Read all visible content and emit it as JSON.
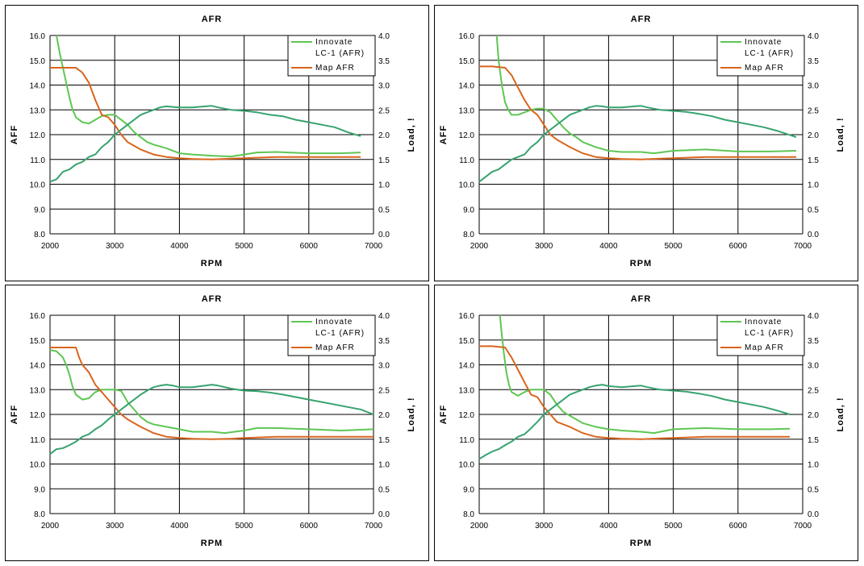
{
  "chart_data": [
    {
      "type": "line",
      "title": "AFR",
      "xlabel": "RPM",
      "ylabel": "AFF",
      "y2label": "Load, !",
      "xlim": [
        2000,
        7000
      ],
      "ylim": [
        8.0,
        16.0
      ],
      "y2lim": [
        0.0,
        4.0
      ],
      "x_ticks": [
        "2000",
        "3000",
        "4000",
        "5000",
        "6000",
        "7000"
      ],
      "y_ticks": [
        "8.0",
        "9.0",
        "10.0",
        "11.0",
        "12.0",
        "13.0",
        "14.0",
        "15.0",
        "16.0"
      ],
      "y2_ticks": [
        "0.0",
        "0.5",
        "1.0",
        "1.5",
        "2.0",
        "2.5",
        "3.0",
        "3.5",
        "4.0"
      ],
      "legend": [
        "Innovate LC-1 (AFR)",
        "Map AFR"
      ],
      "series": [
        {
          "name": "Innovate LC-1 (AFR)",
          "color": "#5ec653",
          "axis": "left",
          "x": [
            2100,
            2150,
            2200,
            2250,
            2300,
            2350,
            2400,
            2500,
            2600,
            2700,
            2800,
            2900,
            3000,
            3100,
            3200,
            3300,
            3400,
            3500,
            3600,
            3800,
            4000,
            4200,
            4500,
            4800,
            5000,
            5200,
            5500,
            6000,
            6500,
            6800
          ],
          "y": [
            16.0,
            15.3,
            14.7,
            14.1,
            13.5,
            13.0,
            12.7,
            12.5,
            12.45,
            12.6,
            12.75,
            12.8,
            12.8,
            12.6,
            12.4,
            12.1,
            11.9,
            11.7,
            11.6,
            11.45,
            11.25,
            11.2,
            11.15,
            11.12,
            11.2,
            11.28,
            11.3,
            11.25,
            11.25,
            11.28
          ]
        },
        {
          "name": "Map AFR",
          "color": "#d9651c",
          "axis": "left",
          "x": [
            2000,
            2200,
            2400,
            2500,
            2600,
            2700,
            2800,
            2900,
            3000,
            3100,
            3200,
            3400,
            3600,
            3800,
            4000,
            4200,
            4500,
            4800,
            5000,
            5500,
            6000,
            6500,
            6800
          ],
          "y": [
            14.7,
            14.7,
            14.7,
            14.5,
            14.1,
            13.4,
            12.8,
            12.7,
            12.4,
            12.0,
            11.7,
            11.4,
            11.2,
            11.1,
            11.05,
            11.02,
            11.0,
            11.03,
            11.05,
            11.1,
            11.1,
            11.1,
            11.1
          ]
        },
        {
          "name": "Load",
          "color": "#37a36f",
          "axis": "right",
          "x": [
            2000,
            2100,
            2200,
            2300,
            2400,
            2500,
            2600,
            2700,
            2800,
            2900,
            3000,
            3100,
            3200,
            3300,
            3400,
            3500,
            3600,
            3700,
            3800,
            3900,
            4000,
            4200,
            4400,
            4500,
            4600,
            4800,
            5000,
            5200,
            5400,
            5600,
            5800,
            6000,
            6200,
            6400,
            6600,
            6800
          ],
          "y": [
            1.05,
            1.1,
            1.25,
            1.3,
            1.4,
            1.45,
            1.55,
            1.6,
            1.75,
            1.85,
            2.0,
            2.1,
            2.2,
            2.3,
            2.4,
            2.45,
            2.5,
            2.55,
            2.57,
            2.56,
            2.55,
            2.55,
            2.57,
            2.58,
            2.55,
            2.5,
            2.48,
            2.45,
            2.4,
            2.37,
            2.3,
            2.25,
            2.2,
            2.15,
            2.05,
            1.97
          ]
        }
      ]
    },
    {
      "type": "line",
      "title": "AFR",
      "xlabel": "RPM",
      "ylabel": "AFF",
      "y2label": "Load, !",
      "xlim": [
        2000,
        7000
      ],
      "ylim": [
        8.0,
        16.0
      ],
      "y2lim": [
        0.0,
        4.0
      ],
      "x_ticks": [
        "2000",
        "3000",
        "4000",
        "5000",
        "6000",
        "7000"
      ],
      "y_ticks": [
        "8.0",
        "9.0",
        "10.0",
        "11.0",
        "12.0",
        "13.0",
        "14.0",
        "15.0",
        "16.0"
      ],
      "y2_ticks": [
        "0.0",
        "0.5",
        "1.0",
        "1.5",
        "2.0",
        "2.5",
        "3.0",
        "3.5",
        "4.0"
      ],
      "legend": [
        "Innovate LC-1 (AFR)",
        "Map AFR"
      ],
      "series": [
        {
          "name": "Innovate LC-1 (AFR)",
          "color": "#5ec653",
          "axis": "left",
          "x": [
            2270,
            2300,
            2350,
            2400,
            2450,
            2500,
            2600,
            2700,
            2800,
            2900,
            3000,
            3100,
            3200,
            3300,
            3400,
            3500,
            3600,
            3800,
            4000,
            4200,
            4500,
            4700,
            5000,
            5500,
            6000,
            6500,
            6900
          ],
          "y": [
            16.0,
            15.0,
            14.0,
            13.3,
            13.0,
            12.8,
            12.8,
            12.9,
            13.0,
            13.05,
            13.05,
            12.9,
            12.6,
            12.3,
            12.05,
            11.9,
            11.7,
            11.5,
            11.35,
            11.3,
            11.3,
            11.25,
            11.35,
            11.4,
            11.32,
            11.32,
            11.35
          ]
        },
        {
          "name": "Map AFR",
          "color": "#d9651c",
          "axis": "left",
          "x": [
            2000,
            2200,
            2400,
            2500,
            2600,
            2700,
            2800,
            2900,
            3000,
            3100,
            3200,
            3400,
            3600,
            3800,
            4000,
            4200,
            4500,
            4800,
            5000,
            5500,
            6000,
            6500,
            6900
          ],
          "y": [
            14.75,
            14.75,
            14.7,
            14.4,
            13.9,
            13.4,
            13.0,
            12.8,
            12.4,
            12.0,
            11.8,
            11.5,
            11.25,
            11.1,
            11.05,
            11.02,
            11.0,
            11.03,
            11.05,
            11.1,
            11.1,
            11.1,
            11.1
          ]
        },
        {
          "name": "Load",
          "color": "#37a36f",
          "axis": "right",
          "x": [
            2000,
            2100,
            2200,
            2300,
            2400,
            2500,
            2600,
            2700,
            2800,
            2900,
            3000,
            3100,
            3200,
            3300,
            3400,
            3500,
            3600,
            3700,
            3800,
            3900,
            4000,
            4200,
            4400,
            4500,
            4600,
            4800,
            5000,
            5200,
            5400,
            5600,
            5800,
            6000,
            6200,
            6400,
            6600,
            6900
          ],
          "y": [
            1.05,
            1.15,
            1.25,
            1.3,
            1.4,
            1.5,
            1.55,
            1.6,
            1.75,
            1.85,
            2.0,
            2.1,
            2.2,
            2.3,
            2.4,
            2.45,
            2.5,
            2.55,
            2.58,
            2.57,
            2.55,
            2.55,
            2.57,
            2.58,
            2.55,
            2.5,
            2.48,
            2.46,
            2.42,
            2.37,
            2.3,
            2.25,
            2.2,
            2.15,
            2.08,
            1.95
          ]
        }
      ]
    },
    {
      "type": "line",
      "title": "AFR",
      "xlabel": "RPM",
      "ylabel": "AFF",
      "y2label": "Load, !",
      "xlim": [
        2000,
        7000
      ],
      "ylim": [
        8.0,
        16.0
      ],
      "y2lim": [
        0.0,
        4.0
      ],
      "x_ticks": [
        "2000",
        "3000",
        "4000",
        "5000",
        "6000",
        "7000"
      ],
      "y_ticks": [
        "8.0",
        "9.0",
        "10.0",
        "11.0",
        "12.0",
        "13.0",
        "14.0",
        "15.0",
        "16.0"
      ],
      "y2_ticks": [
        "0.0",
        "0.5",
        "1.0",
        "1.5",
        "2.0",
        "2.5",
        "3.0",
        "3.5",
        "4.0"
      ],
      "legend": [
        "Innovate LC-1 (AFR)",
        "Map AFR"
      ],
      "series": [
        {
          "name": "Innovate LC-1 (AFR)",
          "color": "#5ec653",
          "axis": "left",
          "x": [
            2000,
            2100,
            2200,
            2250,
            2300,
            2350,
            2400,
            2500,
            2600,
            2700,
            2800,
            2900,
            3000,
            3100,
            3200,
            3300,
            3400,
            3500,
            3600,
            3800,
            4000,
            4200,
            4500,
            4700,
            5000,
            5200,
            5500,
            6000,
            6500,
            7000
          ],
          "y": [
            14.6,
            14.55,
            14.3,
            14.0,
            13.6,
            13.1,
            12.8,
            12.6,
            12.65,
            12.9,
            13.0,
            13.0,
            13.0,
            12.95,
            12.5,
            12.2,
            11.9,
            11.7,
            11.6,
            11.5,
            11.4,
            11.3,
            11.3,
            11.25,
            11.35,
            11.45,
            11.45,
            11.4,
            11.35,
            11.4
          ]
        },
        {
          "name": "Map AFR",
          "color": "#d9651c",
          "axis": "left",
          "x": [
            2000,
            2200,
            2400,
            2450,
            2500,
            2600,
            2700,
            2800,
            2900,
            3000,
            3100,
            3200,
            3400,
            3600,
            3800,
            4000,
            4200,
            4500,
            4800,
            5000,
            5500,
            6000,
            6500,
            7000
          ],
          "y": [
            14.7,
            14.7,
            14.7,
            14.3,
            14.0,
            13.7,
            13.2,
            12.9,
            12.6,
            12.3,
            12.0,
            11.8,
            11.5,
            11.25,
            11.1,
            11.05,
            11.02,
            11.0,
            11.02,
            11.05,
            11.1,
            11.1,
            11.1,
            11.1
          ]
        },
        {
          "name": "Load",
          "color": "#37a36f",
          "axis": "right",
          "x": [
            2000,
            2050,
            2100,
            2200,
            2300,
            2400,
            2500,
            2600,
            2700,
            2800,
            2900,
            3000,
            3100,
            3200,
            3300,
            3400,
            3500,
            3600,
            3700,
            3800,
            3900,
            4000,
            4200,
            4400,
            4500,
            4600,
            4800,
            5000,
            5200,
            5400,
            5600,
            5800,
            6000,
            6200,
            6400,
            6600,
            6800,
            7000
          ],
          "y": [
            1.2,
            1.25,
            1.3,
            1.32,
            1.38,
            1.45,
            1.55,
            1.6,
            1.7,
            1.78,
            1.9,
            2.0,
            2.1,
            2.2,
            2.3,
            2.4,
            2.48,
            2.55,
            2.58,
            2.6,
            2.58,
            2.55,
            2.55,
            2.58,
            2.6,
            2.58,
            2.52,
            2.48,
            2.47,
            2.44,
            2.4,
            2.35,
            2.3,
            2.25,
            2.2,
            2.15,
            2.1,
            2.0
          ]
        }
      ]
    },
    {
      "type": "line",
      "title": "AFR",
      "xlabel": "RPM",
      "ylabel": "AFF",
      "y2label": "Load, !",
      "xlim": [
        2000,
        7000
      ],
      "ylim": [
        8.0,
        16.0
      ],
      "y2lim": [
        0.0,
        4.0
      ],
      "x_ticks": [
        "2000",
        "3000",
        "4000",
        "5000",
        "6000",
        "7000"
      ],
      "y_ticks": [
        "8.0",
        "9.0",
        "10.0",
        "11.0",
        "12.0",
        "13.0",
        "14.0",
        "15.0",
        "16.0"
      ],
      "y2_ticks": [
        "0.0",
        "0.5",
        "1.0",
        "1.5",
        "2.0",
        "2.5",
        "3.0",
        "3.5",
        "4.0"
      ],
      "legend": [
        "Innovate LC-1 (AFR)",
        "Map AFR"
      ],
      "series": [
        {
          "name": "Innovate LC-1 (AFR)",
          "color": "#5ec653",
          "axis": "left",
          "x": [
            2320,
            2350,
            2380,
            2420,
            2460,
            2500,
            2600,
            2700,
            2800,
            2900,
            3000,
            3100,
            3200,
            3300,
            3400,
            3500,
            3600,
            3800,
            4000,
            4200,
            4500,
            4700,
            5000,
            5500,
            6000,
            6500,
            6800
          ],
          "y": [
            16.0,
            15.2,
            14.5,
            13.7,
            13.2,
            12.9,
            12.75,
            12.9,
            13.0,
            13.0,
            13.0,
            12.8,
            12.4,
            12.1,
            11.95,
            11.8,
            11.65,
            11.5,
            11.4,
            11.35,
            11.3,
            11.25,
            11.4,
            11.45,
            11.4,
            11.4,
            11.42
          ]
        },
        {
          "name": "Map AFR",
          "color": "#d9651c",
          "axis": "left",
          "x": [
            2000,
            2200,
            2400,
            2500,
            2600,
            2700,
            2800,
            2900,
            3000,
            3100,
            3200,
            3400,
            3600,
            3800,
            4000,
            4200,
            4500,
            4800,
            5000,
            5500,
            6000,
            6500,
            6800
          ],
          "y": [
            14.75,
            14.75,
            14.7,
            14.3,
            13.8,
            13.3,
            12.8,
            12.7,
            12.3,
            12.0,
            11.7,
            11.5,
            11.25,
            11.1,
            11.05,
            11.02,
            11.0,
            11.03,
            11.05,
            11.1,
            11.1,
            11.1,
            11.1
          ]
        },
        {
          "name": "Load",
          "color": "#37a36f",
          "axis": "right",
          "x": [
            2000,
            2100,
            2200,
            2300,
            2400,
            2500,
            2600,
            2700,
            2800,
            2900,
            3000,
            3100,
            3200,
            3300,
            3400,
            3500,
            3600,
            3700,
            3800,
            3900,
            4000,
            4200,
            4400,
            4500,
            4600,
            4800,
            5000,
            5200,
            5400,
            5600,
            5800,
            6000,
            6200,
            6400,
            6600,
            6800
          ],
          "y": [
            1.1,
            1.18,
            1.25,
            1.3,
            1.38,
            1.45,
            1.55,
            1.6,
            1.72,
            1.85,
            2.0,
            2.1,
            2.2,
            2.3,
            2.4,
            2.45,
            2.5,
            2.55,
            2.58,
            2.6,
            2.57,
            2.55,
            2.57,
            2.58,
            2.55,
            2.5,
            2.48,
            2.46,
            2.42,
            2.37,
            2.3,
            2.25,
            2.2,
            2.15,
            2.08,
            2.0
          ]
        }
      ]
    }
  ]
}
